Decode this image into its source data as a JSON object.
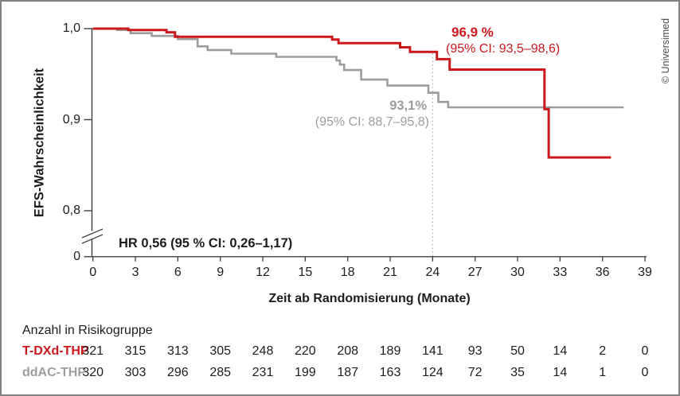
{
  "copyright": "© Universimed",
  "chart_data": {
    "type": "line",
    "subtype": "kaplan-meier-step-curves",
    "xlabel": "Zeit ab Randomisierung (Monate)",
    "ylabel": "EFS-Wahrscheinlichkeit",
    "xlim": [
      0,
      39
    ],
    "x_ticks": [
      0,
      3,
      6,
      9,
      12,
      15,
      18,
      21,
      24,
      27,
      30,
      33,
      36,
      39
    ],
    "y_ticks": [
      {
        "label": "1,0",
        "value": 1.0
      },
      {
        "label": "0,9",
        "value": 0.9
      },
      {
        "label": "0,8",
        "value": 0.8
      },
      {
        "label": "0",
        "value": 0.0,
        "below_axis_break": true
      }
    ],
    "axis_break": true,
    "grid": false,
    "landmark_month": 24,
    "hr_annotation": "HR 0,56 (95 % CI: 0,26–1,17)",
    "series": [
      {
        "name": "T-DXd-THP",
        "color": "#cb181d",
        "landmark_estimate": "96,9 %",
        "landmark_ci": "(95% CI: 93,5–98,6)",
        "end_month": 36.6,
        "steps": [
          [
            0,
            1.0
          ],
          [
            2.5,
            0.9985
          ],
          [
            5.2,
            0.996
          ],
          [
            5.8,
            0.991
          ],
          [
            16.9,
            0.988
          ],
          [
            17.35,
            0.984
          ],
          [
            21.7,
            0.9795
          ],
          [
            22.4,
            0.9745
          ],
          [
            24.3,
            0.9665
          ],
          [
            25.2,
            0.955
          ],
          [
            31.9,
            0.9115
          ],
          [
            32.2,
            0.8585
          ]
        ]
      },
      {
        "name": "ddAC-THP",
        "color": "#9d9d9d",
        "landmark_estimate": "93,1%",
        "landmark_ci": "(95% CI: 88,7–95,8)",
        "end_month": 37.5,
        "steps": [
          [
            0,
            1.0
          ],
          [
            1.7,
            0.9985
          ],
          [
            2.65,
            0.995
          ],
          [
            4.15,
            0.992
          ],
          [
            6.0,
            0.9885
          ],
          [
            7.4,
            0.9805
          ],
          [
            8.1,
            0.9765
          ],
          [
            9.77,
            0.9725
          ],
          [
            12.95,
            0.969
          ],
          [
            17.2,
            0.965
          ],
          [
            17.45,
            0.9605
          ],
          [
            17.75,
            0.9545
          ],
          [
            18.95,
            0.944
          ],
          [
            20.8,
            0.9375
          ],
          [
            23.7,
            0.9295
          ],
          [
            24.4,
            0.9195
          ],
          [
            25.1,
            0.9135
          ]
        ]
      }
    ]
  },
  "risk_table": {
    "title": "Anzahl in Risikogruppe",
    "rows": [
      {
        "label": "T-DXd-THP",
        "counts": [
          321,
          315,
          313,
          305,
          248,
          220,
          208,
          189,
          141,
          93,
          50,
          14,
          2,
          0
        ]
      },
      {
        "label": "ddAC-THP",
        "counts": [
          320,
          303,
          296,
          285,
          231,
          199,
          187,
          163,
          124,
          72,
          35,
          14,
          1,
          0
        ]
      }
    ]
  }
}
